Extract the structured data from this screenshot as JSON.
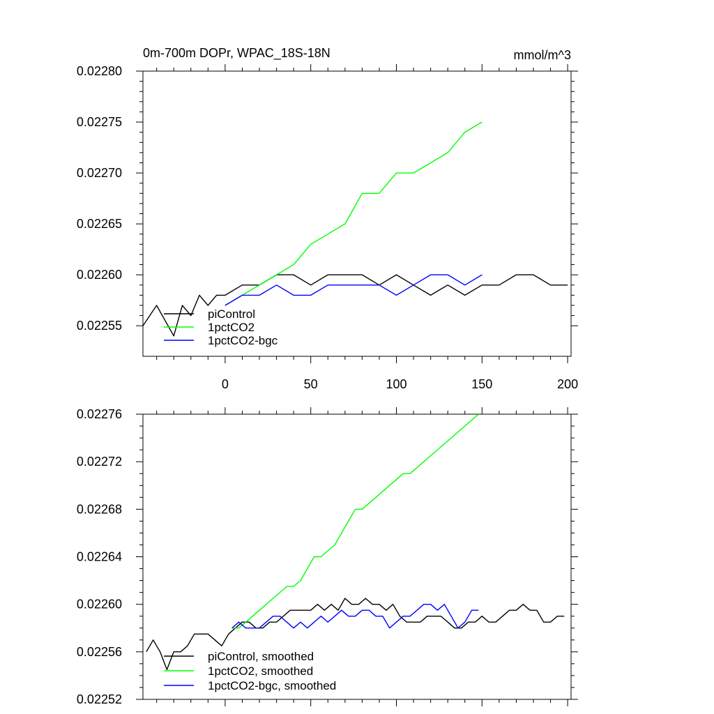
{
  "chart_data": [
    {
      "type": "line",
      "title": "0m-700m DOPr, WPAC_18S-18N",
      "units": "mmol/m^3",
      "xlabel": "",
      "ylabel": "",
      "xlim": [
        -48,
        202
      ],
      "ylim": [
        0.02252,
        0.0228
      ],
      "xticks": [
        0,
        50,
        100,
        150,
        200
      ],
      "xtick_labels": [
        "0",
        "50",
        "100",
        "150",
        "200"
      ],
      "yticks": [
        0.02255,
        0.0226,
        0.02265,
        0.0227,
        0.02275,
        0.0228
      ],
      "ytick_labels": [
        "0.02255",
        "0.02260",
        "0.02265",
        "0.02270",
        "0.02275",
        "0.02280"
      ],
      "legend_position": "bottom-left",
      "series": [
        {
          "name": "piControl",
          "color": "#000000",
          "x": [
            -48,
            -40,
            -30,
            -25,
            -20,
            -15,
            -10,
            -5,
            0,
            10,
            20,
            30,
            40,
            50,
            60,
            70,
            80,
            90,
            100,
            110,
            120,
            130,
            140,
            150,
            160,
            170,
            180,
            190,
            200
          ],
          "y": [
            0.02255,
            0.02257,
            0.02254,
            0.02257,
            0.02256,
            0.02258,
            0.02257,
            0.02258,
            0.02258,
            0.02259,
            0.02259,
            0.0226,
            0.0226,
            0.02259,
            0.0226,
            0.0226,
            0.0226,
            0.02259,
            0.0226,
            0.02259,
            0.02258,
            0.02259,
            0.02258,
            0.02259,
            0.02259,
            0.0226,
            0.0226,
            0.02259,
            0.02259
          ]
        },
        {
          "name": "1pctCO2",
          "color": "#00ff00",
          "x": [
            0,
            10,
            20,
            30,
            40,
            50,
            60,
            70,
            80,
            90,
            100,
            110,
            120,
            130,
            140,
            150
          ],
          "y": [
            0.02257,
            0.02258,
            0.02259,
            0.0226,
            0.02261,
            0.02263,
            0.02264,
            0.02265,
            0.02268,
            0.02268,
            0.0227,
            0.0227,
            0.02271,
            0.02272,
            0.02274,
            0.02275
          ]
        },
        {
          "name": "1pctCO2-bgc",
          "color": "#0000ff",
          "x": [
            0,
            10,
            20,
            30,
            40,
            50,
            60,
            70,
            80,
            90,
            100,
            110,
            120,
            130,
            140,
            150
          ],
          "y": [
            0.02257,
            0.02258,
            0.02258,
            0.02259,
            0.02258,
            0.02258,
            0.02259,
            0.02259,
            0.02259,
            0.02259,
            0.02258,
            0.02259,
            0.0226,
            0.0226,
            0.02259,
            0.0226
          ]
        }
      ]
    },
    {
      "type": "line",
      "title": "",
      "xlabel": "",
      "ylabel": "",
      "xlim": [
        -48,
        202
      ],
      "ylim": [
        0.02252,
        0.02276
      ],
      "xticks": [
        0,
        50,
        100,
        150,
        200
      ],
      "yticks": [
        0.02252,
        0.02256,
        0.0226,
        0.02264,
        0.02268,
        0.02272,
        0.02276
      ],
      "ytick_labels": [
        "0.02252",
        "0.02256",
        "0.02260",
        "0.02264",
        "0.02268",
        "0.02272",
        "0.02276"
      ],
      "legend_position": "bottom-left",
      "series": [
        {
          "name": "piControl, smoothed",
          "color": "#000000",
          "x": [
            -46,
            -42,
            -38,
            -34,
            -30,
            -26,
            -22,
            -18,
            -14,
            -10,
            -6,
            -2,
            2,
            6,
            10,
            14,
            18,
            22,
            26,
            30,
            34,
            38,
            42,
            46,
            50,
            54,
            58,
            62,
            66,
            70,
            74,
            78,
            82,
            86,
            90,
            94,
            98,
            102,
            106,
            110,
            114,
            118,
            122,
            126,
            130,
            134,
            138,
            142,
            146,
            150,
            154,
            158,
            162,
            166,
            170,
            174,
            178,
            182,
            186,
            190,
            194,
            198
          ],
          "y": [
            0.02256,
            0.02257,
            0.02256,
            0.022545,
            0.02256,
            0.02256,
            0.022565,
            0.022575,
            0.022575,
            0.022575,
            0.02257,
            0.022565,
            0.022575,
            0.02258,
            0.022585,
            0.022585,
            0.02258,
            0.02258,
            0.022585,
            0.022585,
            0.02259,
            0.022595,
            0.022595,
            0.022595,
            0.022595,
            0.0226,
            0.022595,
            0.0226,
            0.022595,
            0.022605,
            0.0226,
            0.0226,
            0.022605,
            0.0226,
            0.0226,
            0.022595,
            0.0226,
            0.02259,
            0.022585,
            0.022585,
            0.022585,
            0.02259,
            0.02259,
            0.02259,
            0.022585,
            0.02258,
            0.02258,
            0.022585,
            0.022585,
            0.02259,
            0.022585,
            0.022585,
            0.02259,
            0.022595,
            0.022595,
            0.0226,
            0.022595,
            0.022595,
            0.022585,
            0.022585,
            0.02259,
            0.02259
          ]
        },
        {
          "name": "1pctCO2, smoothed",
          "color": "#00ff00",
          "x": [
            4,
            8,
            12,
            16,
            20,
            24,
            28,
            32,
            36,
            40,
            44,
            48,
            52,
            56,
            60,
            64,
            68,
            72,
            76,
            80,
            84,
            88,
            92,
            96,
            100,
            104,
            108,
            112,
            116,
            120,
            124,
            128,
            132,
            136,
            140,
            144,
            148
          ],
          "y": [
            0.02258,
            0.02258,
            0.022585,
            0.02259,
            0.022595,
            0.0226,
            0.022605,
            0.02261,
            0.022615,
            0.022615,
            0.02262,
            0.02263,
            0.02264,
            0.02264,
            0.022645,
            0.02265,
            0.02266,
            0.02267,
            0.02268,
            0.02268,
            0.022685,
            0.02269,
            0.022695,
            0.0227,
            0.022705,
            0.02271,
            0.02271,
            0.022715,
            0.02272,
            0.022725,
            0.02273,
            0.022735,
            0.02274,
            0.022745,
            0.02275,
            0.022755,
            0.02276
          ]
        },
        {
          "name": "1pctCO2-bgc, smoothed",
          "color": "#0000ff",
          "x": [
            4,
            8,
            12,
            16,
            20,
            24,
            28,
            32,
            36,
            40,
            44,
            48,
            52,
            56,
            60,
            64,
            68,
            72,
            76,
            80,
            84,
            88,
            92,
            96,
            100,
            104,
            108,
            112,
            116,
            120,
            124,
            128,
            132,
            136,
            140,
            144,
            148
          ],
          "y": [
            0.02258,
            0.022585,
            0.02258,
            0.02258,
            0.02258,
            0.022585,
            0.02259,
            0.02259,
            0.022585,
            0.02258,
            0.022585,
            0.02258,
            0.022585,
            0.02259,
            0.022585,
            0.02259,
            0.022595,
            0.02259,
            0.02259,
            0.022595,
            0.022595,
            0.02259,
            0.02259,
            0.02258,
            0.022585,
            0.02259,
            0.02259,
            0.022595,
            0.0226,
            0.0226,
            0.022595,
            0.0226,
            0.02259,
            0.02258,
            0.022585,
            0.022595,
            0.022595
          ]
        }
      ]
    }
  ]
}
